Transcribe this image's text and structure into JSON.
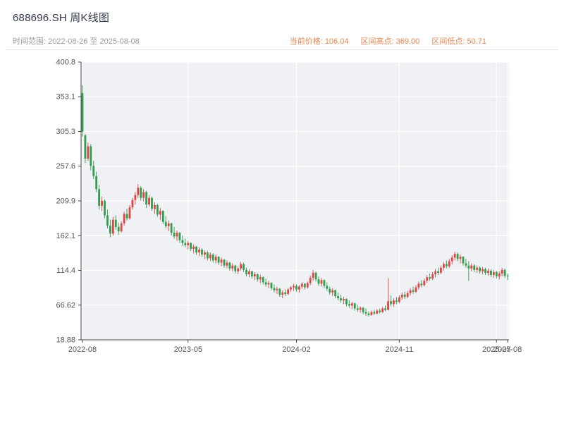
{
  "header": {
    "title": "688696.SH 周K线图",
    "time_range": "时间范围: 2022-08-26 至 2025-08-08",
    "current_price": "当前价格: 106.04",
    "range_high": "区间高点: 369.00",
    "range_low": "区间低点: 50.71",
    "accent_color": "#e6854e",
    "muted_color": "#9a9a9a",
    "title_color": "#333a4d"
  },
  "chart_data": {
    "type": "candlestick",
    "title": "688696.SH 周K线图",
    "period": "weekly",
    "xlabel": "",
    "ylabel": "",
    "ylim": [
      18.88,
      400.8
    ],
    "grid": true,
    "legend": "none",
    "current_price": 106.04,
    "range_high": 369.0,
    "range_low": 50.71,
    "y_ticks": [
      {
        "label": "400.8",
        "value": 400.8
      },
      {
        "label": "353.1",
        "value": 353.1
      },
      {
        "label": "305.3",
        "value": 305.3
      },
      {
        "label": "257.6",
        "value": 257.6
      },
      {
        "label": "209.9",
        "value": 209.9
      },
      {
        "label": "162.1",
        "value": 162.1
      },
      {
        "label": "114.4",
        "value": 114.4
      },
      {
        "label": "66.62",
        "value": 66.62
      },
      {
        "label": "18.88",
        "value": 18.88
      }
    ],
    "x_ticks": [
      {
        "label": "2022-08",
        "i": 0
      },
      {
        "label": "2023-05",
        "i": 38
      },
      {
        "label": "2024-02",
        "i": 77
      },
      {
        "label": "2024-11",
        "i": 114
      },
      {
        "label": "2025-07",
        "i": 149
      },
      {
        "label": "2025-08",
        "i": 153
      }
    ],
    "colors": {
      "up": "#e04444",
      "down": "#2f9e4e",
      "plot_bg": "#f0f1f4",
      "grid": "#ffffff",
      "axis": "#444444",
      "tick_text": "#555555"
    },
    "candles_format": [
      "open",
      "high",
      "low",
      "close"
    ],
    "candles": [
      [
        358,
        369,
        298,
        305
      ],
      [
        300,
        302,
        262,
        268
      ],
      [
        268,
        290,
        265,
        285
      ],
      [
        285,
        288,
        252,
        258
      ],
      [
        258,
        265,
        240,
        244
      ],
      [
        244,
        250,
        222,
        226
      ],
      [
        226,
        232,
        198,
        203
      ],
      [
        203,
        216,
        196,
        210
      ],
      [
        210,
        212,
        186,
        190
      ],
      [
        190,
        198,
        172,
        176
      ],
      [
        176,
        184,
        160,
        165
      ],
      [
        165,
        188,
        162,
        184
      ],
      [
        184,
        190,
        170,
        174
      ],
      [
        174,
        180,
        163,
        168
      ],
      [
        168,
        182,
        166,
        179
      ],
      [
        179,
        195,
        176,
        192
      ],
      [
        192,
        199,
        183,
        186
      ],
      [
        186,
        204,
        184,
        201
      ],
      [
        201,
        214,
        198,
        211
      ],
      [
        211,
        222,
        205,
        218
      ],
      [
        218,
        233,
        214,
        228
      ],
      [
        228,
        230,
        210,
        214
      ],
      [
        214,
        226,
        209,
        222
      ],
      [
        222,
        224,
        200,
        205
      ],
      [
        205,
        218,
        202,
        214
      ],
      [
        214,
        216,
        196,
        199
      ],
      [
        199,
        208,
        192,
        204
      ],
      [
        204,
        206,
        188,
        191
      ],
      [
        191,
        200,
        184,
        196
      ],
      [
        196,
        197,
        178,
        181
      ],
      [
        181,
        189,
        172,
        175
      ],
      [
        175,
        183,
        168,
        179
      ],
      [
        179,
        180,
        162,
        166
      ],
      [
        166,
        174,
        158,
        161
      ],
      [
        161,
        169,
        155,
        166
      ],
      [
        166,
        167,
        152,
        156
      ],
      [
        156,
        162,
        148,
        152
      ],
      [
        152,
        158,
        146,
        149
      ],
      [
        149,
        155,
        143,
        152
      ],
      [
        152,
        153,
        141,
        144
      ],
      [
        144,
        150,
        138,
        147
      ],
      [
        147,
        148,
        136,
        139
      ],
      [
        139,
        146,
        134,
        143
      ],
      [
        143,
        145,
        133,
        136
      ],
      [
        136,
        142,
        130,
        139
      ],
      [
        139,
        141,
        128,
        131
      ],
      [
        131,
        139,
        127,
        136
      ],
      [
        136,
        138,
        125,
        128
      ],
      [
        128,
        136,
        124,
        133
      ],
      [
        133,
        134,
        122,
        125
      ],
      [
        125,
        132,
        120,
        129
      ],
      [
        129,
        130,
        118,
        121
      ],
      [
        121,
        128,
        117,
        125
      ],
      [
        125,
        126,
        114,
        117
      ],
      [
        117,
        124,
        113,
        121
      ],
      [
        121,
        122,
        110,
        113
      ],
      [
        113,
        120,
        109,
        117
      ],
      [
        117,
        126,
        114,
        123
      ],
      [
        123,
        125,
        112,
        115
      ],
      [
        115,
        118,
        106,
        109
      ],
      [
        109,
        116,
        105,
        113
      ],
      [
        113,
        114,
        103,
        106
      ],
      [
        106,
        112,
        101,
        109
      ],
      [
        109,
        110,
        99,
        102
      ],
      [
        102,
        108,
        97,
        105
      ],
      [
        105,
        106,
        95,
        98
      ],
      [
        98,
        103,
        92,
        95
      ],
      [
        95,
        100,
        90,
        97
      ],
      [
        97,
        98,
        87,
        90
      ],
      [
        90,
        95,
        84,
        87
      ],
      [
        87,
        92,
        82,
        89
      ],
      [
        89,
        90,
        78,
        81
      ],
      [
        81,
        87,
        76,
        84
      ],
      [
        84,
        88,
        79,
        82
      ],
      [
        82,
        90,
        80,
        88
      ],
      [
        88,
        93,
        85,
        91
      ],
      [
        91,
        96,
        86,
        93
      ],
      [
        93,
        95,
        85,
        88
      ],
      [
        88,
        94,
        84,
        92
      ],
      [
        92,
        98,
        89,
        96
      ],
      [
        96,
        97,
        88,
        91
      ],
      [
        91,
        99,
        89,
        97
      ],
      [
        97,
        107,
        94,
        104
      ],
      [
        104,
        115,
        100,
        111
      ],
      [
        111,
        113,
        99,
        102
      ],
      [
        102,
        106,
        93,
        96
      ],
      [
        96,
        104,
        92,
        101
      ],
      [
        101,
        102,
        90,
        93
      ],
      [
        93,
        98,
        86,
        89
      ],
      [
        89,
        92,
        81,
        84
      ],
      [
        84,
        90,
        79,
        87
      ],
      [
        87,
        88,
        76,
        79
      ],
      [
        79,
        84,
        73,
        76
      ],
      [
        76,
        81,
        70,
        73
      ],
      [
        73,
        78,
        68,
        75
      ],
      [
        75,
        76,
        65,
        68
      ],
      [
        68,
        73,
        63,
        66
      ],
      [
        66,
        71,
        61,
        69
      ],
      [
        69,
        70,
        59,
        62
      ],
      [
        62,
        67,
        57,
        60
      ],
      [
        60,
        65,
        56,
        63
      ],
      [
        63,
        64,
        54,
        57
      ],
      [
        57,
        62,
        52,
        55
      ],
      [
        55,
        58,
        50.71,
        53
      ],
      [
        53,
        59,
        52,
        57
      ],
      [
        57,
        60,
        53,
        55
      ],
      [
        55,
        61,
        54,
        59
      ],
      [
        59,
        62,
        55,
        57
      ],
      [
        57,
        64,
        56,
        62
      ],
      [
        62,
        66,
        58,
        60
      ],
      [
        60,
        104,
        59,
        72
      ],
      [
        72,
        80,
        65,
        68
      ],
      [
        68,
        76,
        64,
        73
      ],
      [
        73,
        78,
        68,
        71
      ],
      [
        71,
        80,
        69,
        77
      ],
      [
        77,
        84,
        74,
        81
      ],
      [
        81,
        85,
        75,
        78
      ],
      [
        78,
        86,
        76,
        83
      ],
      [
        83,
        90,
        80,
        87
      ],
      [
        87,
        92,
        82,
        85
      ],
      [
        85,
        94,
        83,
        91
      ],
      [
        91,
        99,
        88,
        96
      ],
      [
        96,
        101,
        91,
        94
      ],
      [
        94,
        103,
        92,
        100
      ],
      [
        100,
        108,
        97,
        105
      ],
      [
        105,
        110,
        100,
        103
      ],
      [
        103,
        112,
        101,
        109
      ],
      [
        109,
        116,
        105,
        113
      ],
      [
        113,
        118,
        108,
        111
      ],
      [
        111,
        121,
        109,
        118
      ],
      [
        118,
        126,
        114,
        123
      ],
      [
        123,
        128,
        117,
        120
      ],
      [
        120,
        130,
        118,
        127
      ],
      [
        127,
        135,
        123,
        132
      ],
      [
        132,
        140,
        128,
        137
      ],
      [
        137,
        139,
        127,
        130
      ],
      [
        130,
        136,
        124,
        133
      ],
      [
        133,
        134,
        121,
        124
      ],
      [
        124,
        130,
        118,
        121
      ],
      [
        121,
        127,
        100,
        117
      ],
      [
        117,
        124,
        113,
        121
      ],
      [
        121,
        123,
        112,
        115
      ],
      [
        115,
        121,
        111,
        118
      ],
      [
        118,
        120,
        110,
        113
      ],
      [
        113,
        119,
        109,
        116
      ],
      [
        116,
        118,
        108,
        111
      ],
      [
        111,
        117,
        107,
        114
      ],
      [
        114,
        116,
        105,
        108
      ],
      [
        108,
        115,
        104,
        112
      ],
      [
        112,
        114,
        103,
        106
      ],
      [
        106,
        113,
        102,
        110
      ],
      [
        110,
        118,
        106,
        115
      ],
      [
        115,
        117,
        104,
        107
      ],
      [
        107,
        110,
        101,
        106.04
      ]
    ]
  }
}
